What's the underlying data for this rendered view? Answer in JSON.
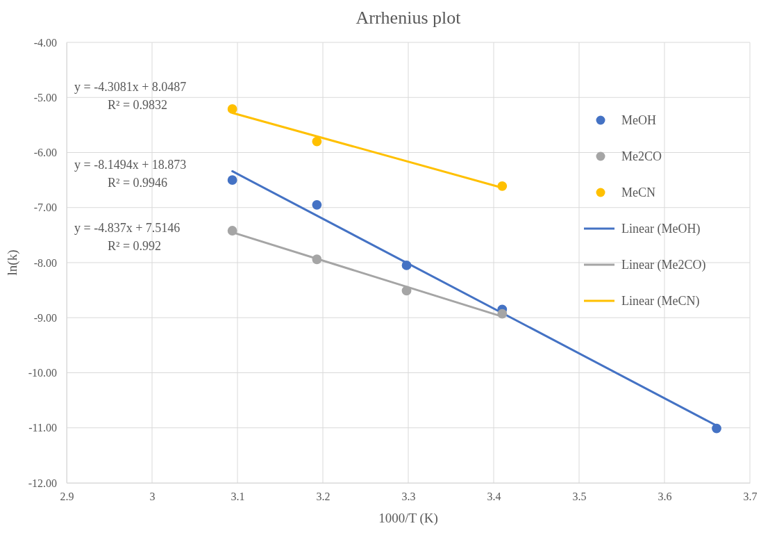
{
  "chart_data": {
    "type": "scatter",
    "title": "Arrhenius plot",
    "xlabel": "1000/T (K)",
    "ylabel": "ln(k)",
    "xlim": [
      2.9,
      3.7
    ],
    "xticks": [
      2.9,
      3,
      3.1,
      3.2,
      3.3,
      3.4,
      3.5,
      3.6,
      3.7
    ],
    "ylim": [
      -12,
      -4
    ],
    "yticks": [
      {
        "value": -12,
        "label": "-12.00"
      },
      {
        "value": -11,
        "label": "-11.00"
      },
      {
        "value": -10,
        "label": "-10.00"
      },
      {
        "value": -9,
        "label": "-9.00"
      },
      {
        "value": -8,
        "label": "-8.00"
      },
      {
        "value": -7,
        "label": "-7.00"
      },
      {
        "value": -6,
        "label": "-6.00"
      },
      {
        "value": -5,
        "label": "-5.00"
      },
      {
        "value": -4,
        "label": "-4.00"
      }
    ],
    "grid": true,
    "legend": "right",
    "series": [
      {
        "name": "MeOH",
        "marker": "circle",
        "color": "#4472c4",
        "x": [
          3.094,
          3.193,
          3.298,
          3.41,
          3.661
        ],
        "values": [
          -6.5,
          -6.95,
          -8.05,
          -8.85,
          -11.01
        ]
      },
      {
        "name": "Me2CO",
        "marker": "circle",
        "color": "#a5a5a5",
        "x": [
          3.094,
          3.193,
          3.298,
          3.41
        ],
        "values": [
          -7.42,
          -7.94,
          -8.51,
          -8.93
        ]
      },
      {
        "name": "MeCN",
        "marker": "circle",
        "color": "#ffc000",
        "x": [
          3.094,
          3.193,
          3.41
        ],
        "values": [
          -5.21,
          -5.8,
          -6.61
        ]
      },
      {
        "name": "Linear (MeOH)",
        "type": "line",
        "color": "#4472c4",
        "x": [
          3.094,
          3.661
        ],
        "values": [
          -6.34,
          -10.96
        ]
      },
      {
        "name": "Linear (Me2CO)",
        "type": "line",
        "color": "#a5a5a5",
        "x": [
          3.094,
          3.41
        ],
        "values": [
          -7.45,
          -8.98
        ]
      },
      {
        "name": "Linear (MeCN)",
        "type": "line",
        "color": "#ffc000",
        "x": [
          3.094,
          3.41
        ],
        "values": [
          -5.28,
          -6.64
        ]
      }
    ],
    "annotations": [
      "y = -4.3081x + 8.0487",
      "R² = 0.9832",
      "y = -8.1494x + 18.873",
      "R² = 0.9946",
      "y = -4.837x + 7.5146",
      "R² = 0.992"
    ]
  }
}
